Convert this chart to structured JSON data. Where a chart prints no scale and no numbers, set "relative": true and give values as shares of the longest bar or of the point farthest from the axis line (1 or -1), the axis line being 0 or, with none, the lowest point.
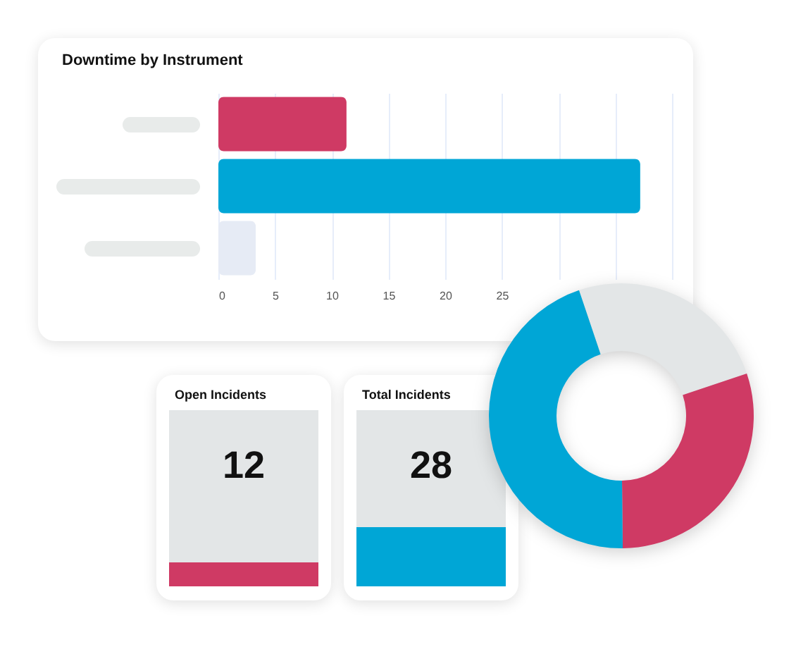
{
  "chart_data": [
    {
      "type": "bar",
      "orientation": "horizontal",
      "title": "Downtime by Instrument",
      "categories": [
        null,
        null,
        null
      ],
      "values": [
        11.3,
        37.2,
        3.3
      ],
      "colors": [
        "#cf3a64",
        "#00a6d6",
        "#e6ebf5"
      ],
      "xlim": [
        0,
        40
      ],
      "xticks": [
        0,
        5,
        10,
        15,
        20,
        25,
        {
          "value": 30,
          "label": null
        },
        {
          "value": 35,
          "label": null
        },
        {
          "value": 40,
          "label": null
        }
      ],
      "grid": "x"
    },
    {
      "type": "donut",
      "relative": true,
      "categories": [
        null,
        null,
        null
      ],
      "values": [
        25,
        30,
        45
      ],
      "colors": [
        "#e3e6e7",
        "#cf3a64",
        "#00a6d6"
      ]
    },
    {
      "type": "other",
      "title": "Open Incidents",
      "annotations": [
        "12"
      ],
      "color": "#cf3a64"
    },
    {
      "type": "other",
      "title": "Total Incidents",
      "annotations": [
        "28"
      ],
      "color": "#00a6d6"
    }
  ]
}
